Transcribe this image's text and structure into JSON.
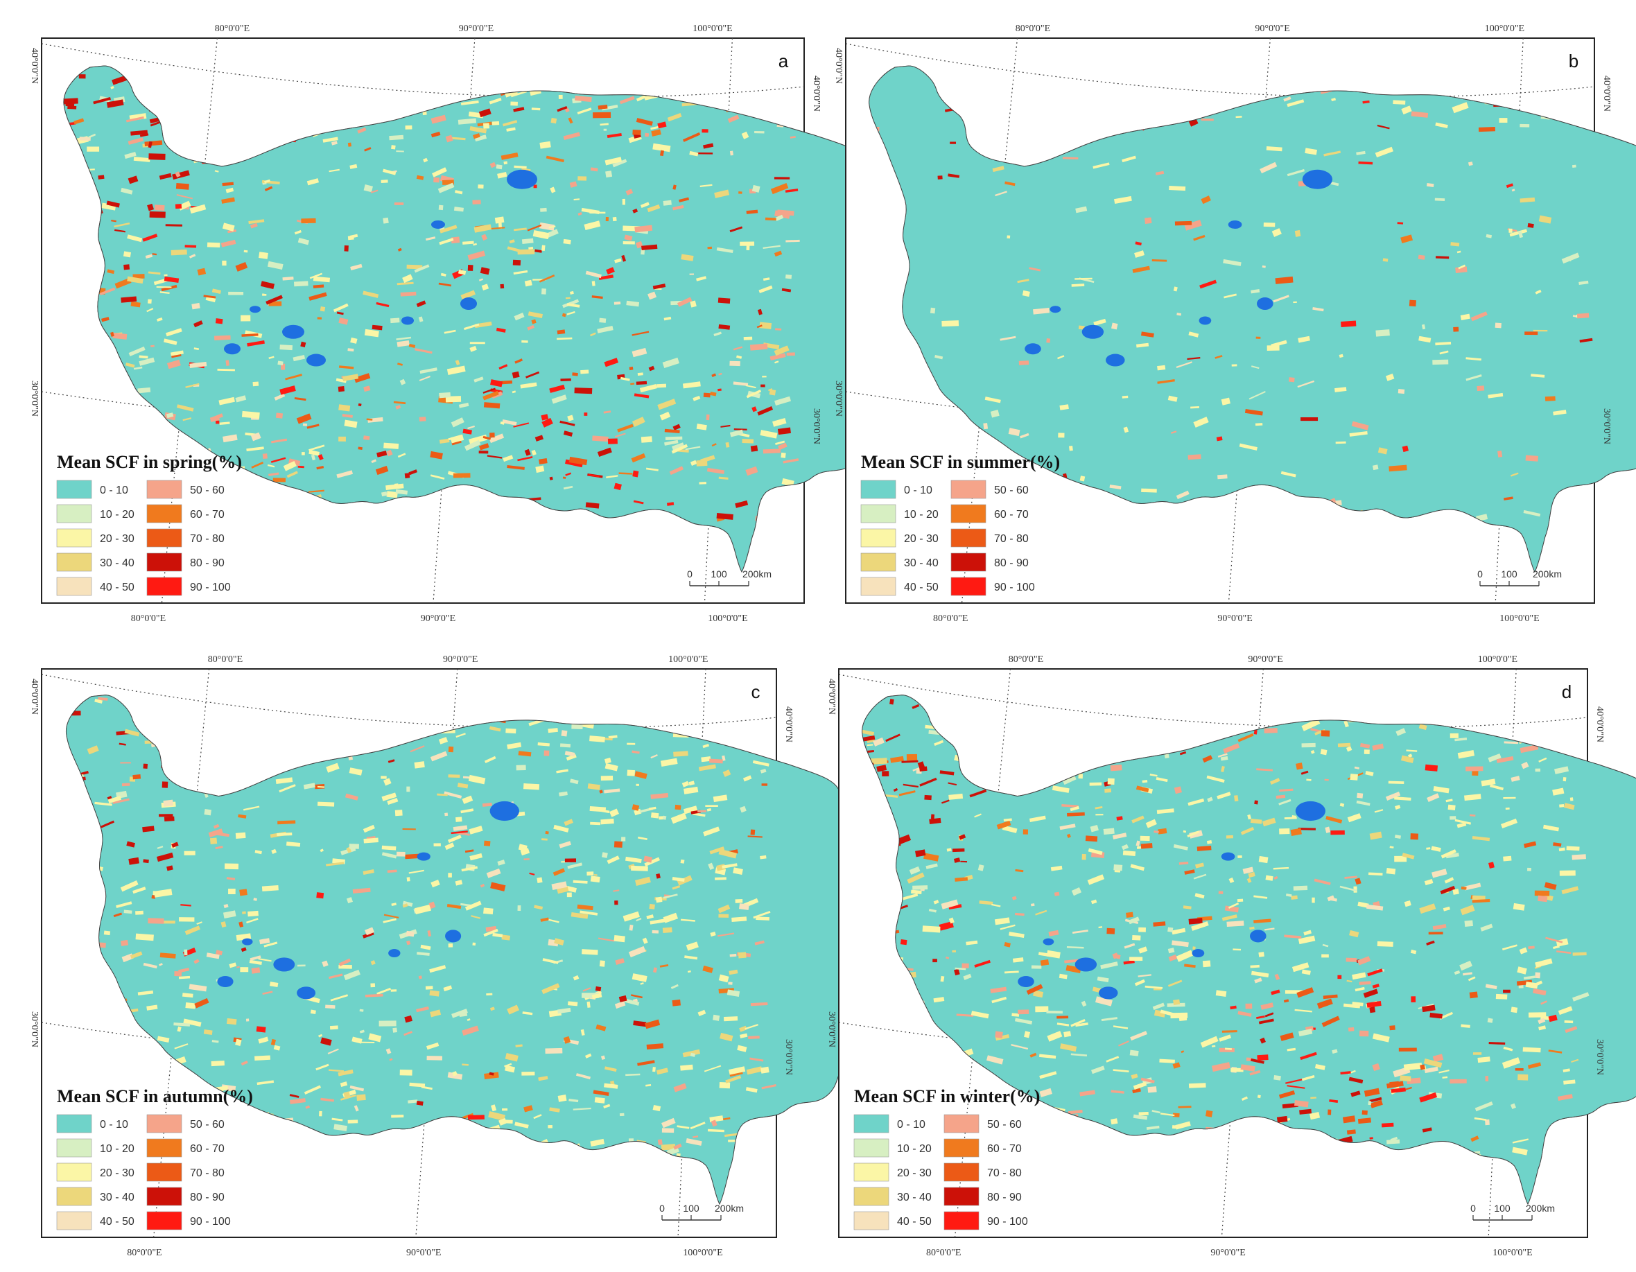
{
  "panels": [
    {
      "letter": "a",
      "legend_title": "Mean SCF in spring(%)",
      "season": "spring"
    },
    {
      "letter": "b",
      "legend_title": "Mean SCF in summer(%)",
      "season": "summer"
    },
    {
      "letter": "c",
      "legend_title": "Mean SCF in autumn(%)",
      "season": "autumn"
    },
    {
      "letter": "d",
      "legend_title": "Mean SCF in winter(%)",
      "season": "winter"
    }
  ],
  "axis_labels": {
    "top": [
      "80°0'0\"E",
      "90°0'0\"E",
      "100°0'0\"E"
    ],
    "bottom": [
      "80°0'0\"E",
      "90°0'0\"E",
      "100°0'0\"E"
    ],
    "lat_upper": "40°0'0\"N",
    "lat_lower": "30°0'0\"N"
  },
  "legend_classes": [
    {
      "label": "0 - 10",
      "color": "#6fd3c9"
    },
    {
      "label": "10 - 20",
      "color": "#d7efc2"
    },
    {
      "label": "20 - 30",
      "color": "#fbf6a6"
    },
    {
      "label": "30 - 40",
      "color": "#ecd77b"
    },
    {
      "label": "40 - 50",
      "color": "#f7e2bc"
    },
    {
      "label": "50 - 60",
      "color": "#f5a48a"
    },
    {
      "label": "60 - 70",
      "color": "#f07a1e"
    },
    {
      "label": "70 - 80",
      "color": "#ec5a16"
    },
    {
      "label": "80 - 90",
      "color": "#cc1108"
    },
    {
      "label": "90 - 100",
      "color": "#ff1a12"
    }
  ],
  "lake_color": "#1e6fe0",
  "scale_bar": {
    "labels": [
      "0",
      "100",
      "200km"
    ]
  }
}
